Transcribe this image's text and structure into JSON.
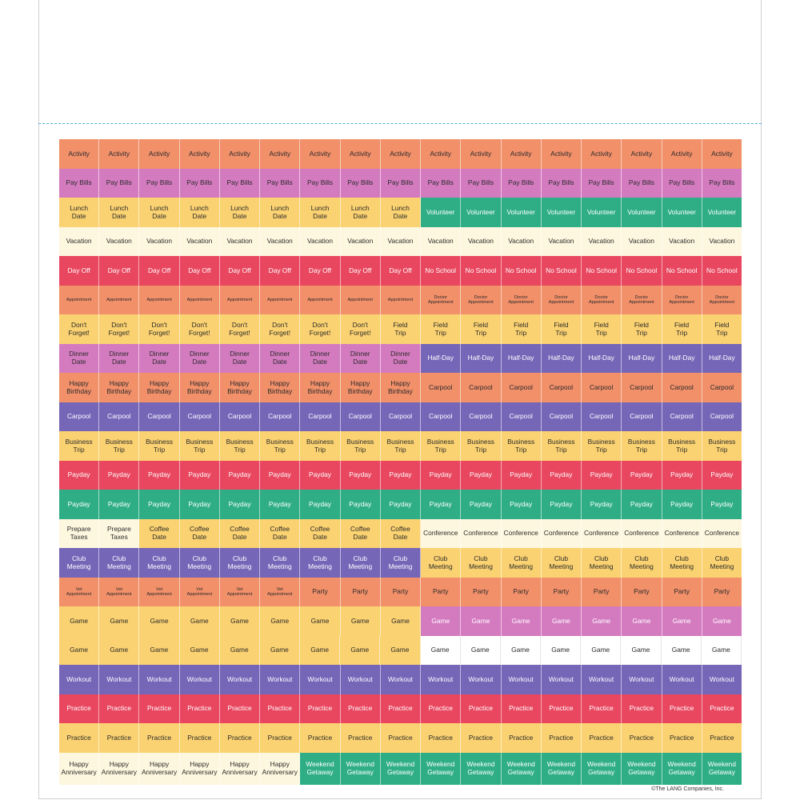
{
  "colors": {
    "orange": "#F2906A",
    "pink": "#D47BC0",
    "yellow": "#FBD271",
    "green": "#2FAE86",
    "cream": "#FEF7DF",
    "red": "#E8475F",
    "purple": "#7566B8",
    "white": "#FFFFFF"
  },
  "rows": [
    {
      "h": 37,
      "segments": [
        {
          "n": 17,
          "label": "Activity",
          "color": "orange"
        }
      ]
    },
    {
      "h": 36,
      "segments": [
        {
          "n": 17,
          "label": "Pay Bills",
          "color": "pink"
        }
      ]
    },
    {
      "h": 37,
      "segments": [
        {
          "n": 9,
          "label": "Lunch\nDate",
          "color": "yellow"
        },
        {
          "n": 8,
          "label": "Volunteer",
          "color": "green",
          "light": true
        }
      ]
    },
    {
      "h": 36,
      "segments": [
        {
          "n": 17,
          "label": "Vacation",
          "color": "cream"
        }
      ]
    },
    {
      "h": 37,
      "segments": [
        {
          "n": 17,
          "label": "Day Off",
          "color": "red",
          "light": true
        },
        {
          "n": 0,
          "label": "",
          "color": "red"
        }
      ],
      "override": [
        {
          "from": 9,
          "label": "No School"
        }
      ]
    },
    {
      "h": 36,
      "segments": [
        {
          "n": 9,
          "label": "Appointment",
          "color": "orange",
          "small": true
        },
        {
          "n": 8,
          "label": "Doctor\nAppointment",
          "color": "orange",
          "small": true
        }
      ]
    },
    {
      "h": 37,
      "segments": [
        {
          "n": 8,
          "label": "Don't\nForget!",
          "color": "yellow"
        },
        {
          "n": 9,
          "label": "Field\nTrip",
          "color": "yellow"
        }
      ]
    },
    {
      "h": 36,
      "segments": [
        {
          "n": 9,
          "label": "Dinner\nDate",
          "color": "pink"
        },
        {
          "n": 8,
          "label": "Half-Day",
          "color": "purple",
          "light": true
        }
      ]
    },
    {
      "h": 37,
      "segments": [
        {
          "n": 9,
          "label": "Happy\nBirthday",
          "color": "orange"
        },
        {
          "n": 8,
          "label": "Carpool",
          "color": "orange"
        }
      ]
    },
    {
      "h": 36,
      "segments": [
        {
          "n": 17,
          "label": "Carpool",
          "color": "purple",
          "light": true
        }
      ]
    },
    {
      "h": 37,
      "segments": [
        {
          "n": 17,
          "label": "Business\nTrip",
          "color": "yellow"
        }
      ]
    },
    {
      "h": 36,
      "segments": [
        {
          "n": 17,
          "label": "Payday",
          "color": "red",
          "light": true
        }
      ]
    },
    {
      "h": 37,
      "segments": [
        {
          "n": 17,
          "label": "Payday",
          "color": "green",
          "light": true
        }
      ]
    },
    {
      "h": 36,
      "segments": [
        {
          "n": 2,
          "label": "Prepare\nTaxes",
          "color": "cream"
        },
        {
          "n": 7,
          "label": "Coffee\nDate",
          "color": "yellow"
        },
        {
          "n": 8,
          "label": "Conference",
          "color": "cream"
        }
      ]
    },
    {
      "h": 37,
      "segments": [
        {
          "n": 9,
          "label": "Club\nMeeting",
          "color": "purple",
          "light": true
        },
        {
          "n": 8,
          "label": "Club\nMeeting",
          "color": "yellow"
        }
      ]
    },
    {
      "h": 36,
      "segments": [
        {
          "n": 6,
          "label": "Vet\nAppointment",
          "color": "orange",
          "small": true
        },
        {
          "n": 11,
          "label": "Party",
          "color": "orange"
        }
      ]
    },
    {
      "h": 37,
      "segments": [
        {
          "n": 9,
          "label": "Game",
          "color": "yellow"
        },
        {
          "n": 8,
          "label": "Game",
          "color": "pink",
          "light": true
        }
      ]
    },
    {
      "h": 36,
      "segments": [
        {
          "n": 9,
          "label": "Game",
          "color": "yellow"
        },
        {
          "n": 8,
          "label": "Game",
          "color": "white"
        }
      ]
    },
    {
      "h": 37,
      "segments": [
        {
          "n": 17,
          "label": "Workout",
          "color": "purple",
          "light": true
        }
      ]
    },
    {
      "h": 36,
      "segments": [
        {
          "n": 17,
          "label": "Practice",
          "color": "red",
          "light": true
        }
      ]
    },
    {
      "h": 37,
      "segments": [
        {
          "n": 17,
          "label": "Practice",
          "color": "yellow"
        }
      ]
    },
    {
      "h": 40,
      "segments": [
        {
          "n": 6,
          "label": "Happy\nAnniversary",
          "color": "cream"
        },
        {
          "n": 11,
          "label": "Weekend\nGetaway",
          "color": "green",
          "light": true
        }
      ]
    }
  ],
  "copyright": "©The LANG Companies, Inc."
}
